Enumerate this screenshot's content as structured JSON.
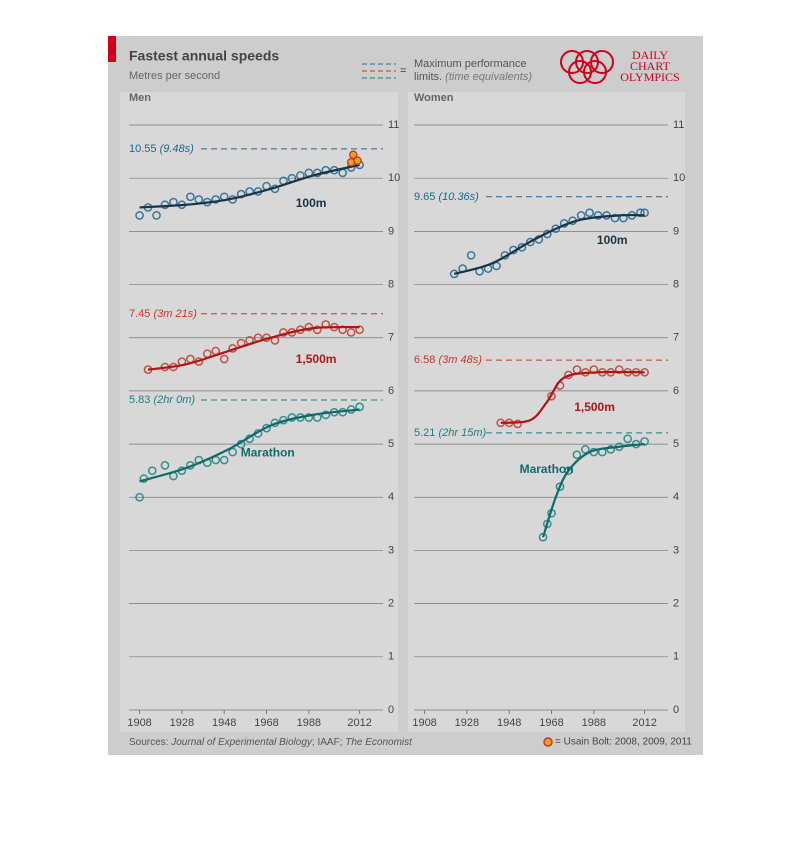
{
  "header": {
    "title": "Fastest annual speeds",
    "subtitle": "Metres per second",
    "legend_text": "Maximum performance",
    "legend_text2": "limits.",
    "legend_note": "(time equivalents)",
    "legend_eq": "=",
    "logo": [
      "DAILY",
      "CHART",
      "OLYMPICS"
    ]
  },
  "footer": {
    "sources": [
      "Sources:",
      "Journal of Experimental Biology",
      "; IAAF;",
      "The Economist"
    ],
    "note": "= Usain Bolt: 2008, 2009, 2011"
  },
  "chart_data": [
    {
      "type": "scatter",
      "title": "Men",
      "xlim": [
        1903,
        2024
      ],
      "ylim": [
        0,
        11
      ],
      "xticks": [
        1908,
        1928,
        1948,
        1968,
        1988,
        2012
      ],
      "yticks": [
        0,
        1,
        2,
        3,
        4,
        5,
        6,
        7,
        8,
        9,
        10,
        11
      ],
      "grid": true,
      "series": [
        {
          "name": "100m",
          "color": "#1f6590",
          "line_color": "#1b3445",
          "x": [
            1908,
            1912,
            1916,
            1920,
            1924,
            1928,
            1932,
            1936,
            1940,
            1944,
            1948,
            1952,
            1956,
            1960,
            1964,
            1968,
            1972,
            1976,
            1980,
            1984,
            1988,
            1992,
            1996,
            2000,
            2004,
            2008,
            2012
          ],
          "values": [
            9.3,
            9.45,
            9.3,
            9.5,
            9.55,
            9.5,
            9.65,
            9.6,
            9.55,
            9.6,
            9.65,
            9.6,
            9.7,
            9.75,
            9.75,
            9.85,
            9.8,
            9.95,
            10.0,
            10.05,
            10.1,
            10.1,
            10.15,
            10.15,
            10.1,
            10.2,
            10.25
          ],
          "trend_x": [
            1908,
            1930,
            1950,
            1970,
            1990,
            2012
          ],
          "trend": [
            9.45,
            9.5,
            9.6,
            9.8,
            10.05,
            10.25
          ],
          "limit": {
            "value": 10.55,
            "time": "(9.48s)"
          },
          "bolt": {
            "x": [
              2008,
              2009,
              2011
            ],
            "values": [
              10.3,
              10.44,
              10.33
            ]
          }
        },
        {
          "name": "1,500m",
          "color": "#c0392b",
          "line_color": "#b01515",
          "x": [
            1912,
            1920,
            1924,
            1928,
            1932,
            1936,
            1940,
            1944,
            1948,
            1952,
            1956,
            1960,
            1964,
            1968,
            1972,
            1976,
            1980,
            1984,
            1988,
            1992,
            1996,
            2000,
            2004,
            2008,
            2012
          ],
          "values": [
            6.4,
            6.45,
            6.45,
            6.55,
            6.6,
            6.55,
            6.7,
            6.75,
            6.6,
            6.8,
            6.9,
            6.95,
            7.0,
            7.0,
            6.95,
            7.1,
            7.1,
            7.15,
            7.2,
            7.15,
            7.25,
            7.2,
            7.15,
            7.1,
            7.15
          ],
          "trend_x": [
            1912,
            1930,
            1950,
            1970,
            1990,
            2012
          ],
          "trend": [
            6.4,
            6.5,
            6.75,
            7.0,
            7.18,
            7.2
          ],
          "limit": {
            "value": 7.45,
            "time": "(3m 21s)"
          }
        },
        {
          "name": "Marathon",
          "color": "#1b8080",
          "line_color": "#0f6a6a",
          "x": [
            1908,
            1910,
            1914,
            1920,
            1924,
            1928,
            1932,
            1936,
            1940,
            1944,
            1948,
            1952,
            1956,
            1960,
            1964,
            1968,
            1972,
            1976,
            1980,
            1984,
            1988,
            1992,
            1996,
            2000,
            2004,
            2008,
            2012
          ],
          "values": [
            4.0,
            4.35,
            4.5,
            4.6,
            4.4,
            4.5,
            4.6,
            4.7,
            4.65,
            4.7,
            4.7,
            4.85,
            5.0,
            5.1,
            5.2,
            5.3,
            5.4,
            5.45,
            5.5,
            5.5,
            5.5,
            5.5,
            5.55,
            5.6,
            5.6,
            5.65,
            5.7
          ],
          "trend_x": [
            1908,
            1930,
            1950,
            1970,
            1990,
            2012
          ],
          "trend": [
            4.3,
            4.55,
            4.9,
            5.35,
            5.55,
            5.65
          ],
          "limit": {
            "value": 5.83,
            "time": "(2hr 0m)"
          }
        }
      ]
    },
    {
      "type": "scatter",
      "title": "Women",
      "xlim": [
        1903,
        2024
      ],
      "ylim": [
        0,
        11
      ],
      "xticks": [
        1908,
        1928,
        1948,
        1968,
        1988,
        2012
      ],
      "yticks": [
        0,
        1,
        2,
        3,
        4,
        5,
        6,
        7,
        8,
        9,
        10,
        11
      ],
      "grid": true,
      "series": [
        {
          "name": "100m",
          "color": "#1f6590",
          "line_color": "#1b3445",
          "x": [
            1922,
            1926,
            1930,
            1934,
            1938,
            1942,
            1946,
            1950,
            1954,
            1958,
            1962,
            1966,
            1970,
            1974,
            1978,
            1982,
            1986,
            1990,
            1994,
            1998,
            2002,
            2006,
            2010,
            2012
          ],
          "values": [
            8.2,
            8.3,
            8.55,
            8.25,
            8.3,
            8.35,
            8.55,
            8.65,
            8.7,
            8.8,
            8.85,
            8.95,
            9.05,
            9.15,
            9.2,
            9.3,
            9.35,
            9.3,
            9.3,
            9.25,
            9.25,
            9.3,
            9.35,
            9.35
          ],
          "trend_x": [
            1922,
            1940,
            1960,
            1980,
            2000,
            2012
          ],
          "trend": [
            8.2,
            8.4,
            8.85,
            9.2,
            9.3,
            9.3
          ],
          "limit": {
            "value": 9.65,
            "time": "(10.36s)"
          }
        },
        {
          "name": "1,500m",
          "color": "#c0392b",
          "line_color": "#b01515",
          "x": [
            1944,
            1948,
            1952,
            1968,
            1972,
            1976,
            1980,
            1984,
            1988,
            1992,
            1996,
            2000,
            2004,
            2008,
            2012
          ],
          "values": [
            5.4,
            5.4,
            5.38,
            5.9,
            6.1,
            6.3,
            6.4,
            6.35,
            6.4,
            6.35,
            6.35,
            6.4,
            6.35,
            6.35,
            6.35
          ],
          "trend_x": [
            1944,
            1958,
            1966,
            1974,
            1990,
            2012
          ],
          "trend": [
            5.4,
            5.45,
            5.8,
            6.25,
            6.35,
            6.35
          ],
          "limit": {
            "value": 6.58,
            "time": "(3m 48s)"
          }
        },
        {
          "name": "Marathon",
          "color": "#1b8080",
          "line_color": "#0f6a6a",
          "x": [
            1964,
            1966,
            1968,
            1972,
            1976,
            1980,
            1984,
            1988,
            1992,
            1996,
            2000,
            2004,
            2008,
            2012
          ],
          "values": [
            3.25,
            3.5,
            3.7,
            4.2,
            4.5,
            4.8,
            4.9,
            4.85,
            4.85,
            4.9,
            4.95,
            5.1,
            5.0,
            5.05
          ],
          "trend_x": [
            1964,
            1970,
            1976,
            1986,
            2000,
            2012
          ],
          "trend": [
            3.25,
            4.0,
            4.5,
            4.85,
            4.95,
            5.0
          ],
          "limit": {
            "value": 5.21,
            "time": "(2hr 15m)"
          }
        }
      ]
    }
  ]
}
